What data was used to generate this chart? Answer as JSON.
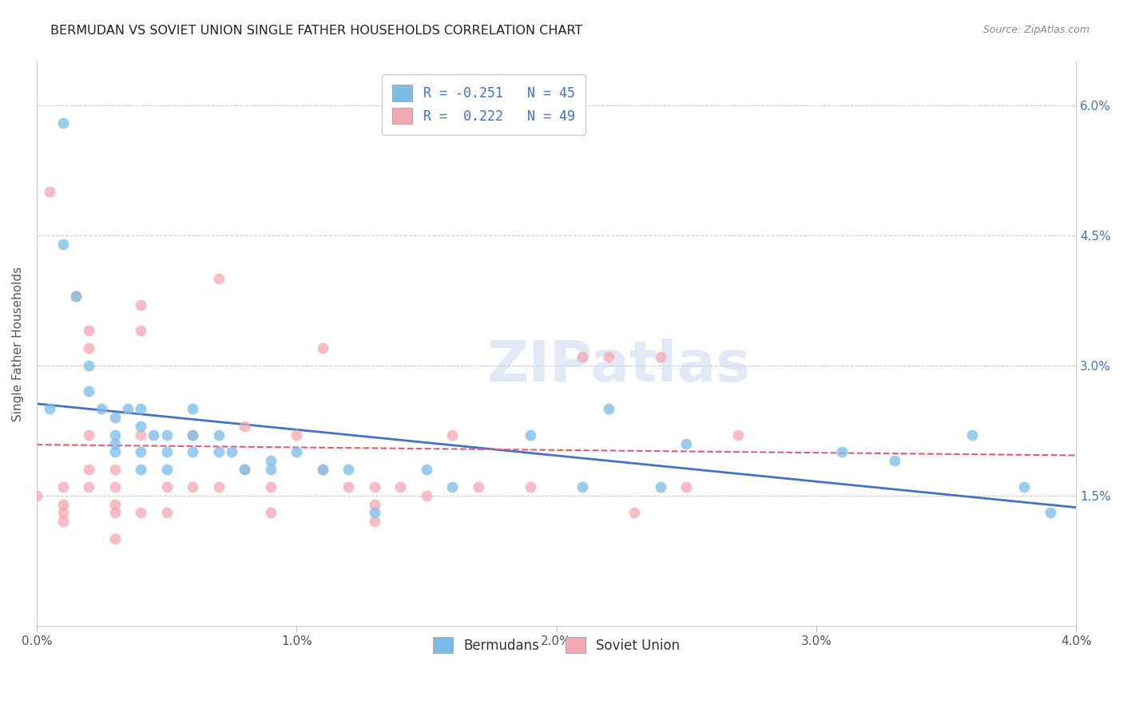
{
  "title": "BERMUDAN VS SOVIET UNION SINGLE FATHER HOUSEHOLDS CORRELATION CHART",
  "source": "Source: ZipAtlas.com",
  "ylabel": "Single Father Households",
  "xlim": [
    0.0,
    0.04
  ],
  "ylim": [
    0.0,
    0.065
  ],
  "xticks": [
    0.0,
    0.01,
    0.02,
    0.03,
    0.04
  ],
  "xtick_labels": [
    "0.0%",
    "1.0%",
    "2.0%",
    "3.0%",
    "4.0%"
  ],
  "yticks": [
    0.0,
    0.015,
    0.03,
    0.045,
    0.06
  ],
  "ytick_labels_right": [
    "",
    "1.5%",
    "3.0%",
    "4.5%",
    "6.0%"
  ],
  "legend_blue_label": "Bermudans",
  "legend_pink_label": "Soviet Union",
  "legend_r_blue": "R = -0.251   N = 45",
  "legend_r_pink": "R =  0.222   N = 49",
  "blue_color": "#7bbce8",
  "pink_color": "#f4a8b0",
  "blue_line_color": "#4472c4",
  "pink_line_color": "#e05c6e",
  "watermark": "ZIPatlas",
  "blue_x": [
    0.0005,
    0.001,
    0.001,
    0.0015,
    0.002,
    0.002,
    0.0025,
    0.003,
    0.003,
    0.003,
    0.003,
    0.0035,
    0.004,
    0.004,
    0.004,
    0.004,
    0.0045,
    0.005,
    0.005,
    0.005,
    0.006,
    0.006,
    0.006,
    0.007,
    0.007,
    0.0075,
    0.008,
    0.009,
    0.009,
    0.01,
    0.011,
    0.012,
    0.013,
    0.015,
    0.016,
    0.019,
    0.021,
    0.022,
    0.024,
    0.025,
    0.031,
    0.033,
    0.036,
    0.038,
    0.039
  ],
  "blue_y": [
    0.025,
    0.058,
    0.044,
    0.038,
    0.03,
    0.027,
    0.025,
    0.024,
    0.022,
    0.021,
    0.02,
    0.025,
    0.025,
    0.023,
    0.02,
    0.018,
    0.022,
    0.022,
    0.02,
    0.018,
    0.025,
    0.022,
    0.02,
    0.022,
    0.02,
    0.02,
    0.018,
    0.019,
    0.018,
    0.02,
    0.018,
    0.018,
    0.013,
    0.018,
    0.016,
    0.022,
    0.016,
    0.025,
    0.016,
    0.021,
    0.02,
    0.019,
    0.022,
    0.016,
    0.013
  ],
  "pink_x": [
    0.0,
    0.0005,
    0.001,
    0.001,
    0.001,
    0.001,
    0.0015,
    0.002,
    0.002,
    0.002,
    0.002,
    0.002,
    0.003,
    0.003,
    0.003,
    0.003,
    0.003,
    0.004,
    0.004,
    0.004,
    0.004,
    0.005,
    0.005,
    0.006,
    0.006,
    0.007,
    0.007,
    0.008,
    0.008,
    0.009,
    0.009,
    0.01,
    0.011,
    0.011,
    0.012,
    0.013,
    0.013,
    0.013,
    0.014,
    0.015,
    0.016,
    0.017,
    0.019,
    0.021,
    0.022,
    0.023,
    0.024,
    0.025,
    0.027
  ],
  "pink_y": [
    0.015,
    0.05,
    0.016,
    0.014,
    0.013,
    0.012,
    0.038,
    0.034,
    0.032,
    0.022,
    0.018,
    0.016,
    0.018,
    0.016,
    0.014,
    0.013,
    0.01,
    0.037,
    0.034,
    0.022,
    0.013,
    0.016,
    0.013,
    0.022,
    0.016,
    0.04,
    0.016,
    0.023,
    0.018,
    0.016,
    0.013,
    0.022,
    0.032,
    0.018,
    0.016,
    0.016,
    0.014,
    0.012,
    0.016,
    0.015,
    0.022,
    0.016,
    0.016,
    0.031,
    0.031,
    0.013,
    0.031,
    0.016,
    0.022
  ]
}
